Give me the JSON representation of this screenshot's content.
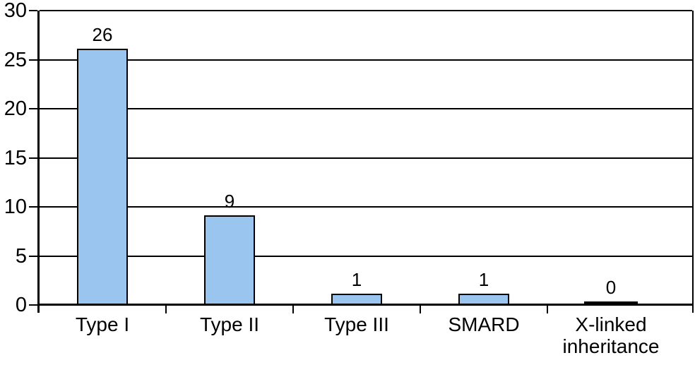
{
  "chart_data": {
    "type": "bar",
    "title": "",
    "xlabel": "",
    "ylabel": "",
    "categories": [
      "Type I",
      "Type II",
      "Type III",
      "SMARD",
      "X-linked inheritance"
    ],
    "values": [
      26,
      9,
      1,
      1,
      0
    ],
    "data_labels": [
      "26",
      "9",
      "1",
      "1",
      "0"
    ],
    "ylim": [
      0,
      30
    ],
    "yticks": [
      0,
      5,
      10,
      15,
      20,
      25,
      30
    ],
    "grid": "horizontal-on",
    "legend": "none",
    "colors": {
      "bar_fill": "#9AC5EE",
      "bar_border": "#000000",
      "zero_bar": "#000000",
      "axis": "#000000",
      "gridline": "#000000",
      "text": "#000000",
      "background": "#FFFFFF"
    }
  }
}
